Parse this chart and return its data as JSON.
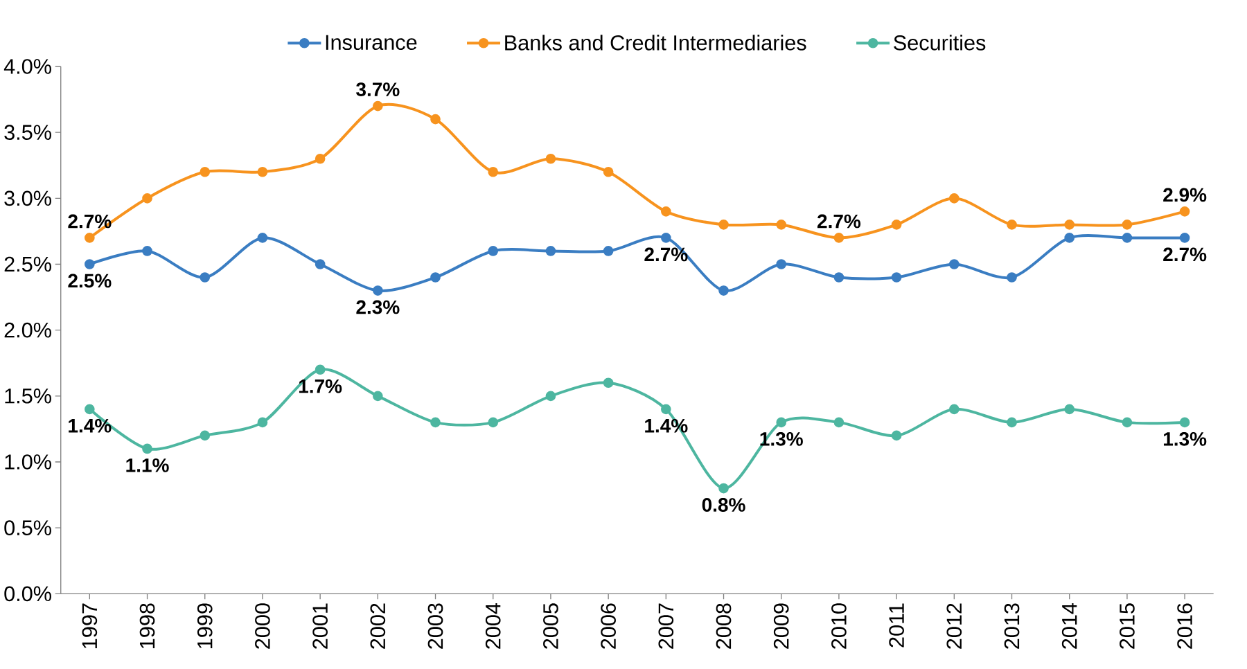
{
  "chart_data": {
    "type": "line",
    "categories": [
      "1997",
      "1998",
      "1999",
      "2000",
      "2001",
      "2002",
      "2003",
      "2004",
      "2005",
      "2006",
      "2007",
      "2008",
      "2009",
      "2010",
      "2011",
      "2012",
      "2013",
      "2014",
      "2015",
      "2016"
    ],
    "series": [
      {
        "name": "Insurance",
        "color": "#3a7dc2",
        "values": [
          2.5,
          2.6,
          2.4,
          2.7,
          2.5,
          2.3,
          2.4,
          2.6,
          2.6,
          2.6,
          2.7,
          2.3,
          2.5,
          2.4,
          2.4,
          2.5,
          2.4,
          2.7,
          2.7,
          2.7
        ],
        "value_labels": [
          "2.5%",
          null,
          null,
          null,
          null,
          "2.3%",
          null,
          null,
          null,
          null,
          "2.7%",
          null,
          null,
          null,
          null,
          null,
          null,
          null,
          null,
          "2.7%"
        ]
      },
      {
        "name": "Banks and Credit Intermediaries",
        "color": "#f7931e",
        "values": [
          2.7,
          3.0,
          3.2,
          3.2,
          3.3,
          3.7,
          3.6,
          3.2,
          3.3,
          3.2,
          2.9,
          2.8,
          2.8,
          2.7,
          2.8,
          3.0,
          2.8,
          2.8,
          2.8,
          2.9
        ],
        "value_labels": [
          "2.7%",
          null,
          null,
          null,
          null,
          "3.7%",
          null,
          null,
          null,
          null,
          null,
          null,
          null,
          "2.7%",
          null,
          null,
          null,
          null,
          null,
          "2.9%"
        ]
      },
      {
        "name": "Securities",
        "color": "#4db6a0",
        "values": [
          1.4,
          1.1,
          1.2,
          1.3,
          1.7,
          1.5,
          1.3,
          1.3,
          1.5,
          1.6,
          1.4,
          0.8,
          1.3,
          1.3,
          1.2,
          1.4,
          1.3,
          1.4,
          1.3,
          1.3
        ],
        "value_labels": [
          "1.4%",
          "1.1%",
          null,
          null,
          "1.7%",
          null,
          null,
          null,
          null,
          null,
          "1.4%",
          "0.8%",
          "1.3%",
          null,
          null,
          null,
          null,
          null,
          null,
          "1.3%"
        ]
      }
    ],
    "ylim": [
      0,
      4
    ],
    "yticks": [
      {
        "value": 0,
        "label": "0.0%"
      },
      {
        "value": 0.5,
        "label": "0.5%"
      },
      {
        "value": 1,
        "label": "1.0%"
      },
      {
        "value": 1.5,
        "label": "1.5%"
      },
      {
        "value": 2,
        "label": "2.0%"
      },
      {
        "value": 2.5,
        "label": "2.5%"
      },
      {
        "value": 3,
        "label": "3.0%"
      },
      {
        "value": 3.5,
        "label": "3.5%"
      },
      {
        "value": 4,
        "label": "4.0%"
      }
    ],
    "legend": "top",
    "marker": "circle",
    "line_style": "solid"
  }
}
